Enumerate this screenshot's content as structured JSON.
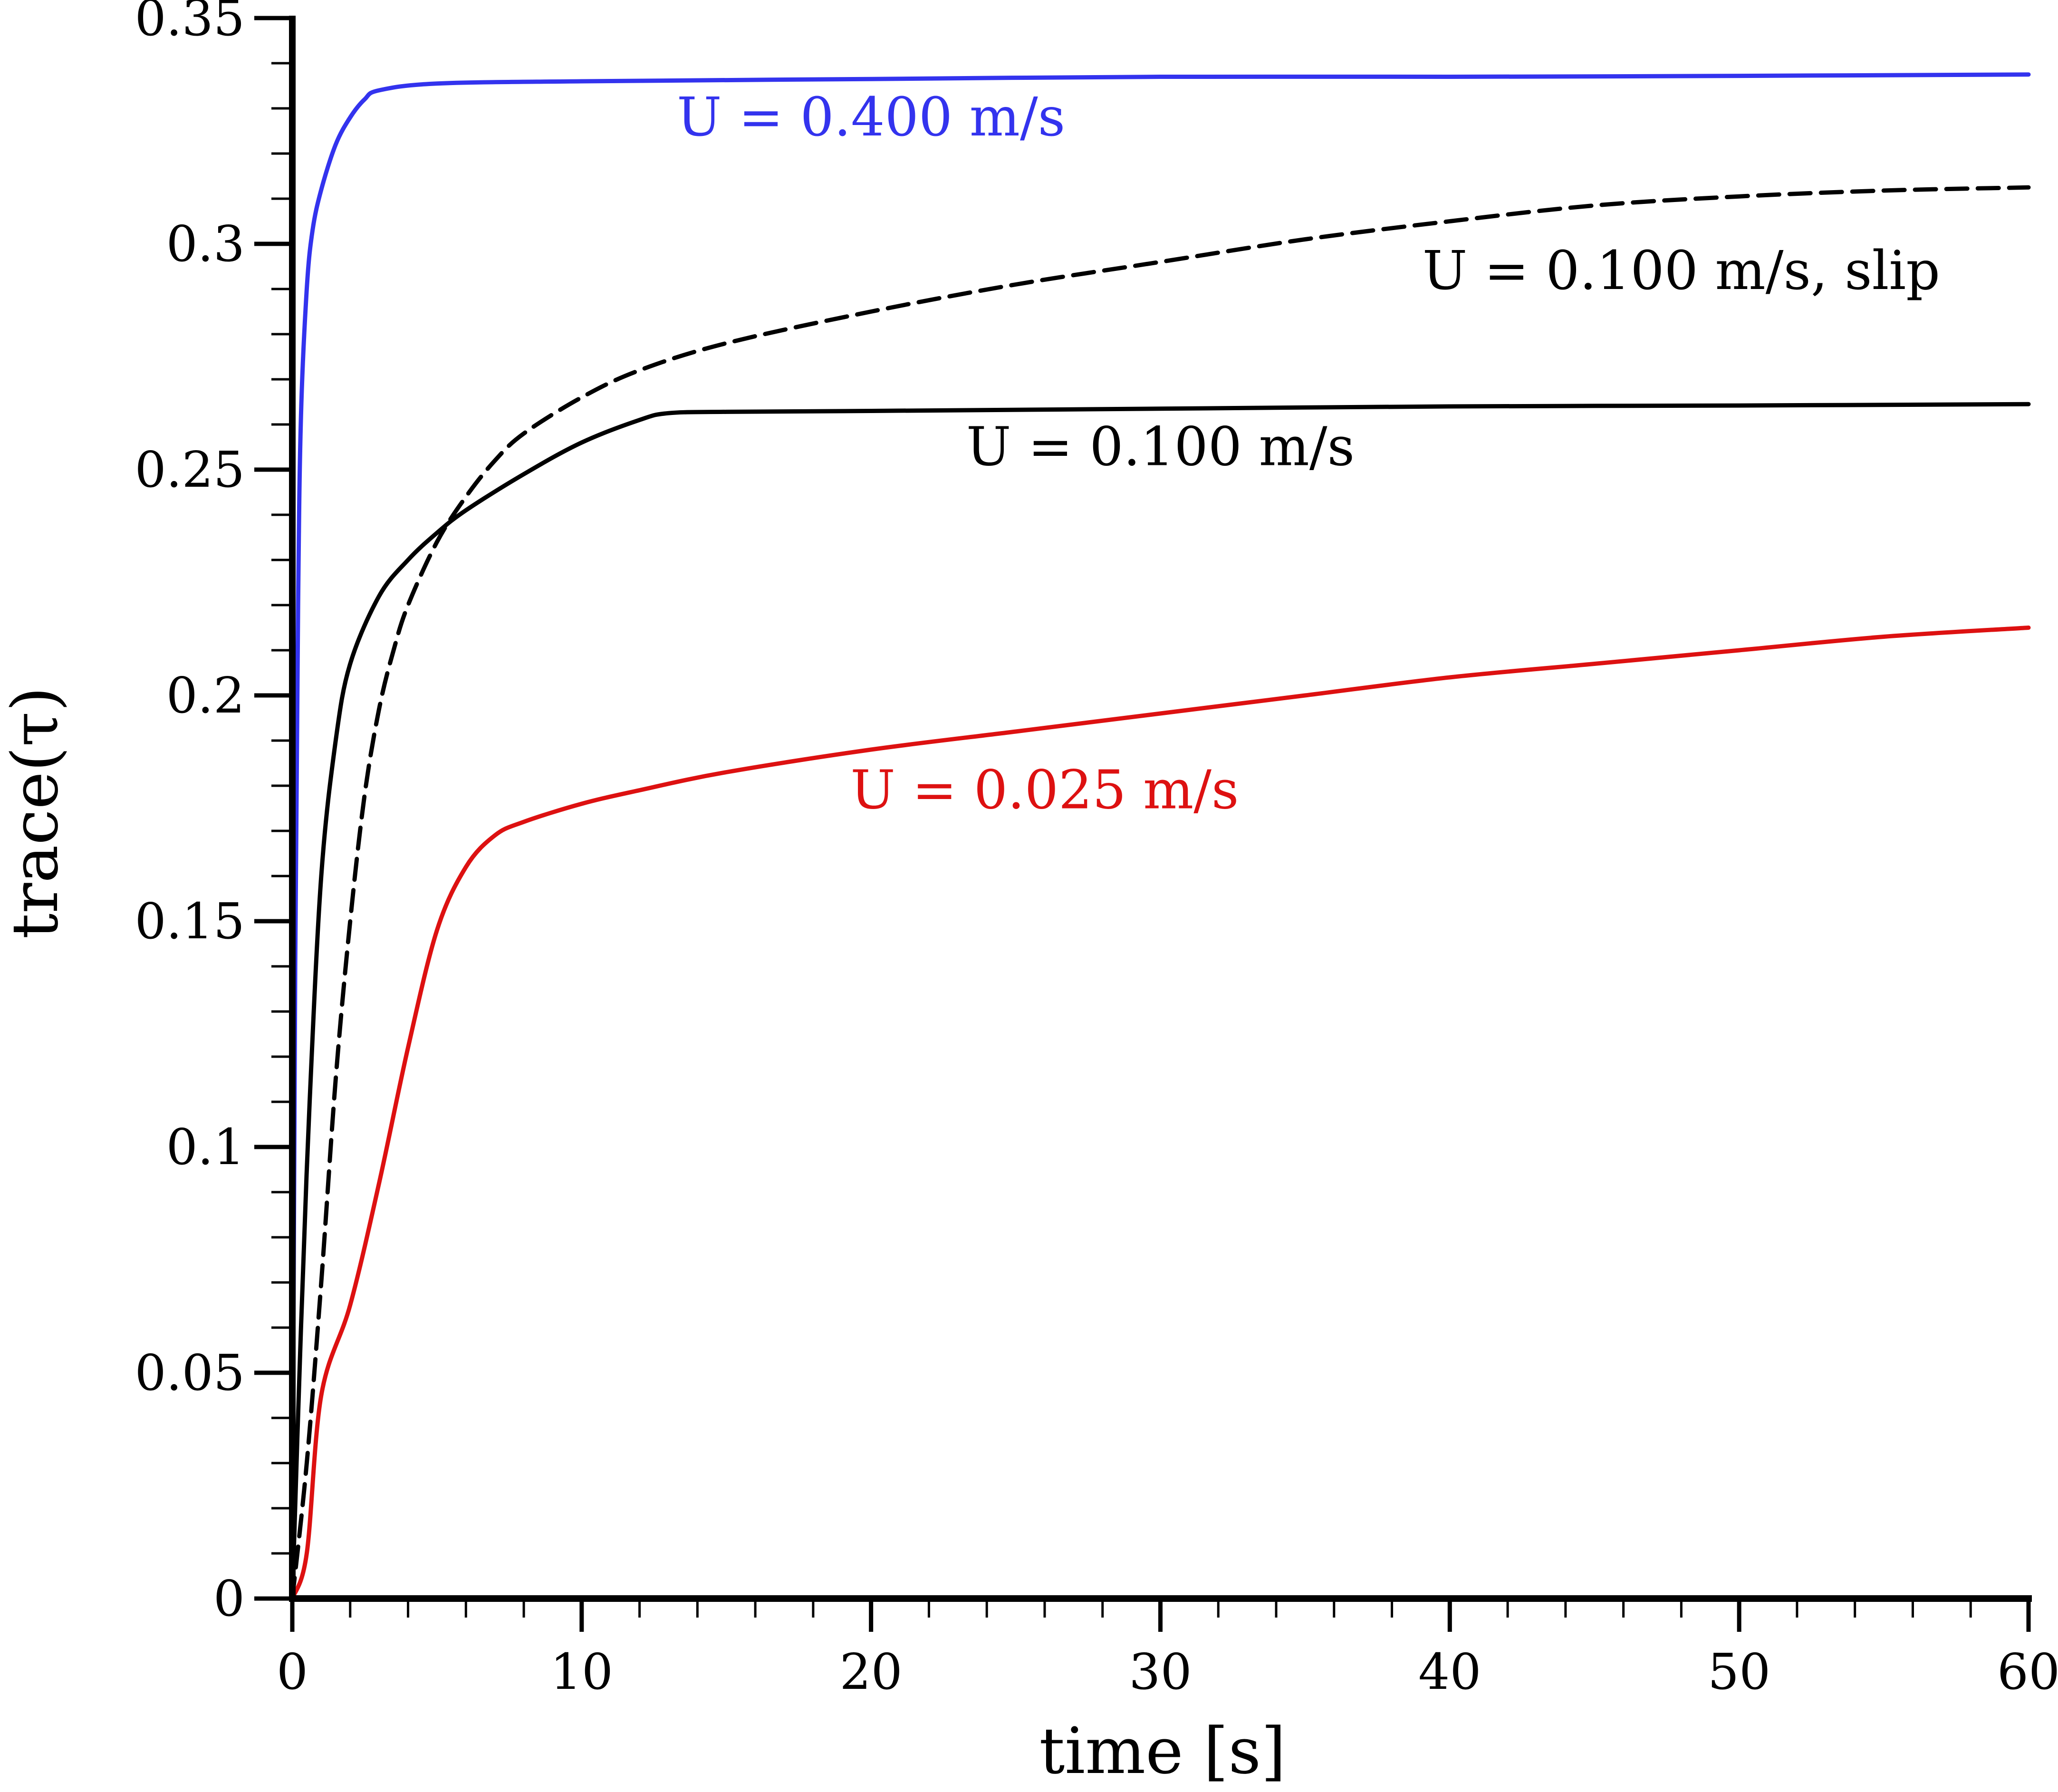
{
  "chart_data": {
    "type": "line",
    "title": "",
    "xlabel": "time [s]",
    "ylabel": "trace(τ)",
    "xlim": [
      0,
      60
    ],
    "ylim": [
      0,
      0.35
    ],
    "xticks": [
      0,
      10,
      20,
      30,
      40,
      50,
      60
    ],
    "xtick_labels": [
      "0",
      "10",
      "20",
      "30",
      "40",
      "50",
      "60"
    ],
    "yticks": [
      0,
      0.05,
      0.1,
      0.15,
      0.2,
      0.25,
      0.3,
      0.35
    ],
    "ytick_labels": [
      "0",
      "0.05",
      "0.1",
      "0.15",
      "0.2",
      "0.25",
      "0.3",
      "0.35"
    ],
    "grid": false,
    "legend": "none",
    "series": [
      {
        "name": "U = 0.400 m/s",
        "color": "#3333ee",
        "style": "solid",
        "x": [
          0,
          0.1,
          0.2,
          0.3,
          0.5,
          0.7,
          1.0,
          1.5,
          2.0,
          2.5,
          3.0,
          5,
          10,
          20,
          30,
          40,
          50,
          60
        ],
        "y": [
          0,
          0.14,
          0.22,
          0.262,
          0.29,
          0.303,
          0.312,
          0.322,
          0.328,
          0.332,
          0.334,
          0.3355,
          0.336,
          0.3365,
          0.337,
          0.337,
          0.3372,
          0.3375
        ]
      },
      {
        "name": "U = 0.100 m/s, slip",
        "color": "#000000",
        "style": "dashed",
        "x": [
          0,
          0.5,
          1.0,
          1.5,
          2.0,
          2.5,
          3.0,
          3.5,
          4.0,
          5.0,
          6.0,
          7.0,
          8.0,
          10,
          12,
          15,
          20,
          25,
          30,
          35,
          40,
          45,
          50,
          55,
          60
        ],
        "y": [
          0,
          0.03,
          0.07,
          0.115,
          0.15,
          0.178,
          0.197,
          0.21,
          0.22,
          0.234,
          0.244,
          0.252,
          0.258,
          0.266,
          0.272,
          0.278,
          0.285,
          0.291,
          0.296,
          0.301,
          0.305,
          0.3085,
          0.3105,
          0.3118,
          0.3125
        ]
      },
      {
        "name": "U = 0.100 m/s",
        "color": "#000000",
        "style": "solid",
        "x": [
          0,
          0.3,
          0.6,
          1.0,
          1.5,
          2.0,
          3.0,
          4.0,
          5.0,
          6.0,
          8.0,
          10,
          12,
          13,
          15,
          20,
          30,
          40,
          50,
          60
        ],
        "y": [
          0,
          0.06,
          0.11,
          0.16,
          0.19,
          0.207,
          0.222,
          0.23,
          0.236,
          0.241,
          0.249,
          0.256,
          0.261,
          0.2625,
          0.2628,
          0.263,
          0.2635,
          0.264,
          0.2642,
          0.2645
        ]
      },
      {
        "name": "U = 0.025 m/s",
        "color": "#dd1111",
        "style": "solid",
        "x": [
          0,
          0.5,
          1.0,
          2.0,
          3.0,
          4.0,
          5.0,
          6.0,
          7.0,
          8.0,
          10,
          12,
          15,
          20,
          25,
          30,
          35,
          40,
          45,
          50,
          55,
          60
        ],
        "y": [
          0,
          0.01,
          0.045,
          0.065,
          0.092,
          0.122,
          0.148,
          0.162,
          0.169,
          0.172,
          0.176,
          0.179,
          0.183,
          0.188,
          0.192,
          0.196,
          0.2,
          0.204,
          0.207,
          0.21,
          0.213,
          0.215
        ]
      }
    ],
    "annotations": [
      {
        "series": "U = 0.400 m/s",
        "text": "U = 0.400 m/s",
        "x": 20,
        "y": 0.324,
        "color": "#3333ee"
      },
      {
        "series": "U = 0.100 m/s, slip",
        "text": "U = 0.100 m/s, slip",
        "x": 48,
        "y": 0.29,
        "color": "#000000"
      },
      {
        "series": "U = 0.100 m/s",
        "text": "U = 0.100 m/s",
        "x": 30,
        "y": 0.251,
        "color": "#000000"
      },
      {
        "series": "U = 0.025 m/s",
        "text": "U = 0.025 m/s",
        "x": 26,
        "y": 0.175,
        "color": "#dd1111"
      }
    ]
  }
}
